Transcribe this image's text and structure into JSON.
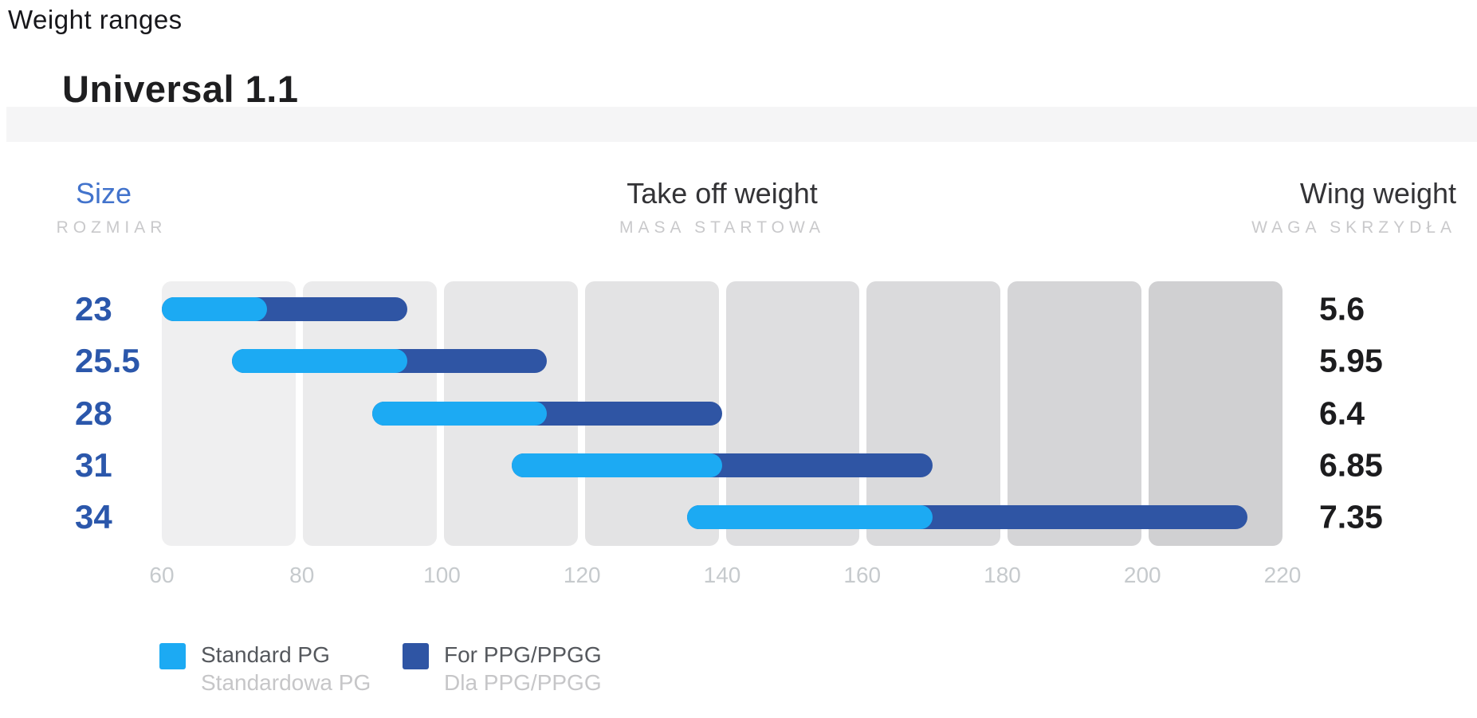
{
  "page": {
    "title": "Weight ranges"
  },
  "product": {
    "name": "Universal 1.1"
  },
  "columns": {
    "size": {
      "label": "Size",
      "sublabel": "ROZMIAR"
    },
    "takeoff": {
      "label": "Take off weight",
      "sublabel": "MASA STARTOWA"
    },
    "wing": {
      "label": "Wing weight",
      "sublabel": "WAGA SKRZYDŁA"
    }
  },
  "chart_data": {
    "type": "bar",
    "orientation": "horizontal-range",
    "title": "Take off weight",
    "xlim": [
      60,
      220
    ],
    "x_ticks": [
      60,
      80,
      100,
      120,
      140,
      160,
      180,
      200,
      220
    ],
    "grid": "shaded-columns",
    "rows": [
      {
        "size": "23",
        "standard_pg_range": [
          60,
          75
        ],
        "ppg_range": [
          75,
          95
        ],
        "total_range": [
          60,
          95
        ],
        "wing_weight": "5.6"
      },
      {
        "size": "25.5",
        "standard_pg_range": [
          70,
          95
        ],
        "ppg_range": [
          95,
          115
        ],
        "total_range": [
          70,
          115
        ],
        "wing_weight": "5.95"
      },
      {
        "size": "28",
        "standard_pg_range": [
          90,
          115
        ],
        "ppg_range": [
          115,
          140
        ],
        "total_range": [
          90,
          140
        ],
        "wing_weight": "6.4"
      },
      {
        "size": "31",
        "standard_pg_range": [
          110,
          140
        ],
        "ppg_range": [
          140,
          170
        ],
        "total_range": [
          110,
          170
        ],
        "wing_weight": "6.85"
      },
      {
        "size": "34",
        "standard_pg_range": [
          135,
          170
        ],
        "ppg_range": [
          170,
          215
        ],
        "total_range": [
          135,
          215
        ],
        "wing_weight": "7.35"
      }
    ],
    "legend": [
      {
        "label": "Standard PG",
        "sublabel": "Standardowa PG",
        "color": "#1caaf3"
      },
      {
        "label": "For PPG/PPGG",
        "sublabel": "Dla PPG/PPGG",
        "color": "#2f55a4"
      }
    ],
    "legend_position": "bottom-left"
  },
  "colors": {
    "standard_pg": "#1caaf3",
    "ppg": "#2f55a4",
    "size_label": "#2b57ab",
    "size_header": "#4273cc",
    "subheader": "#c9c9cb",
    "tick": "#c6cacd",
    "band": "#f5f5f6",
    "column_shades": [
      "#efeff0",
      "#ebebec",
      "#e7e7e8",
      "#e3e3e4",
      "#dedee0",
      "#dadadc",
      "#d5d5d7",
      "#d0d0d2"
    ]
  }
}
